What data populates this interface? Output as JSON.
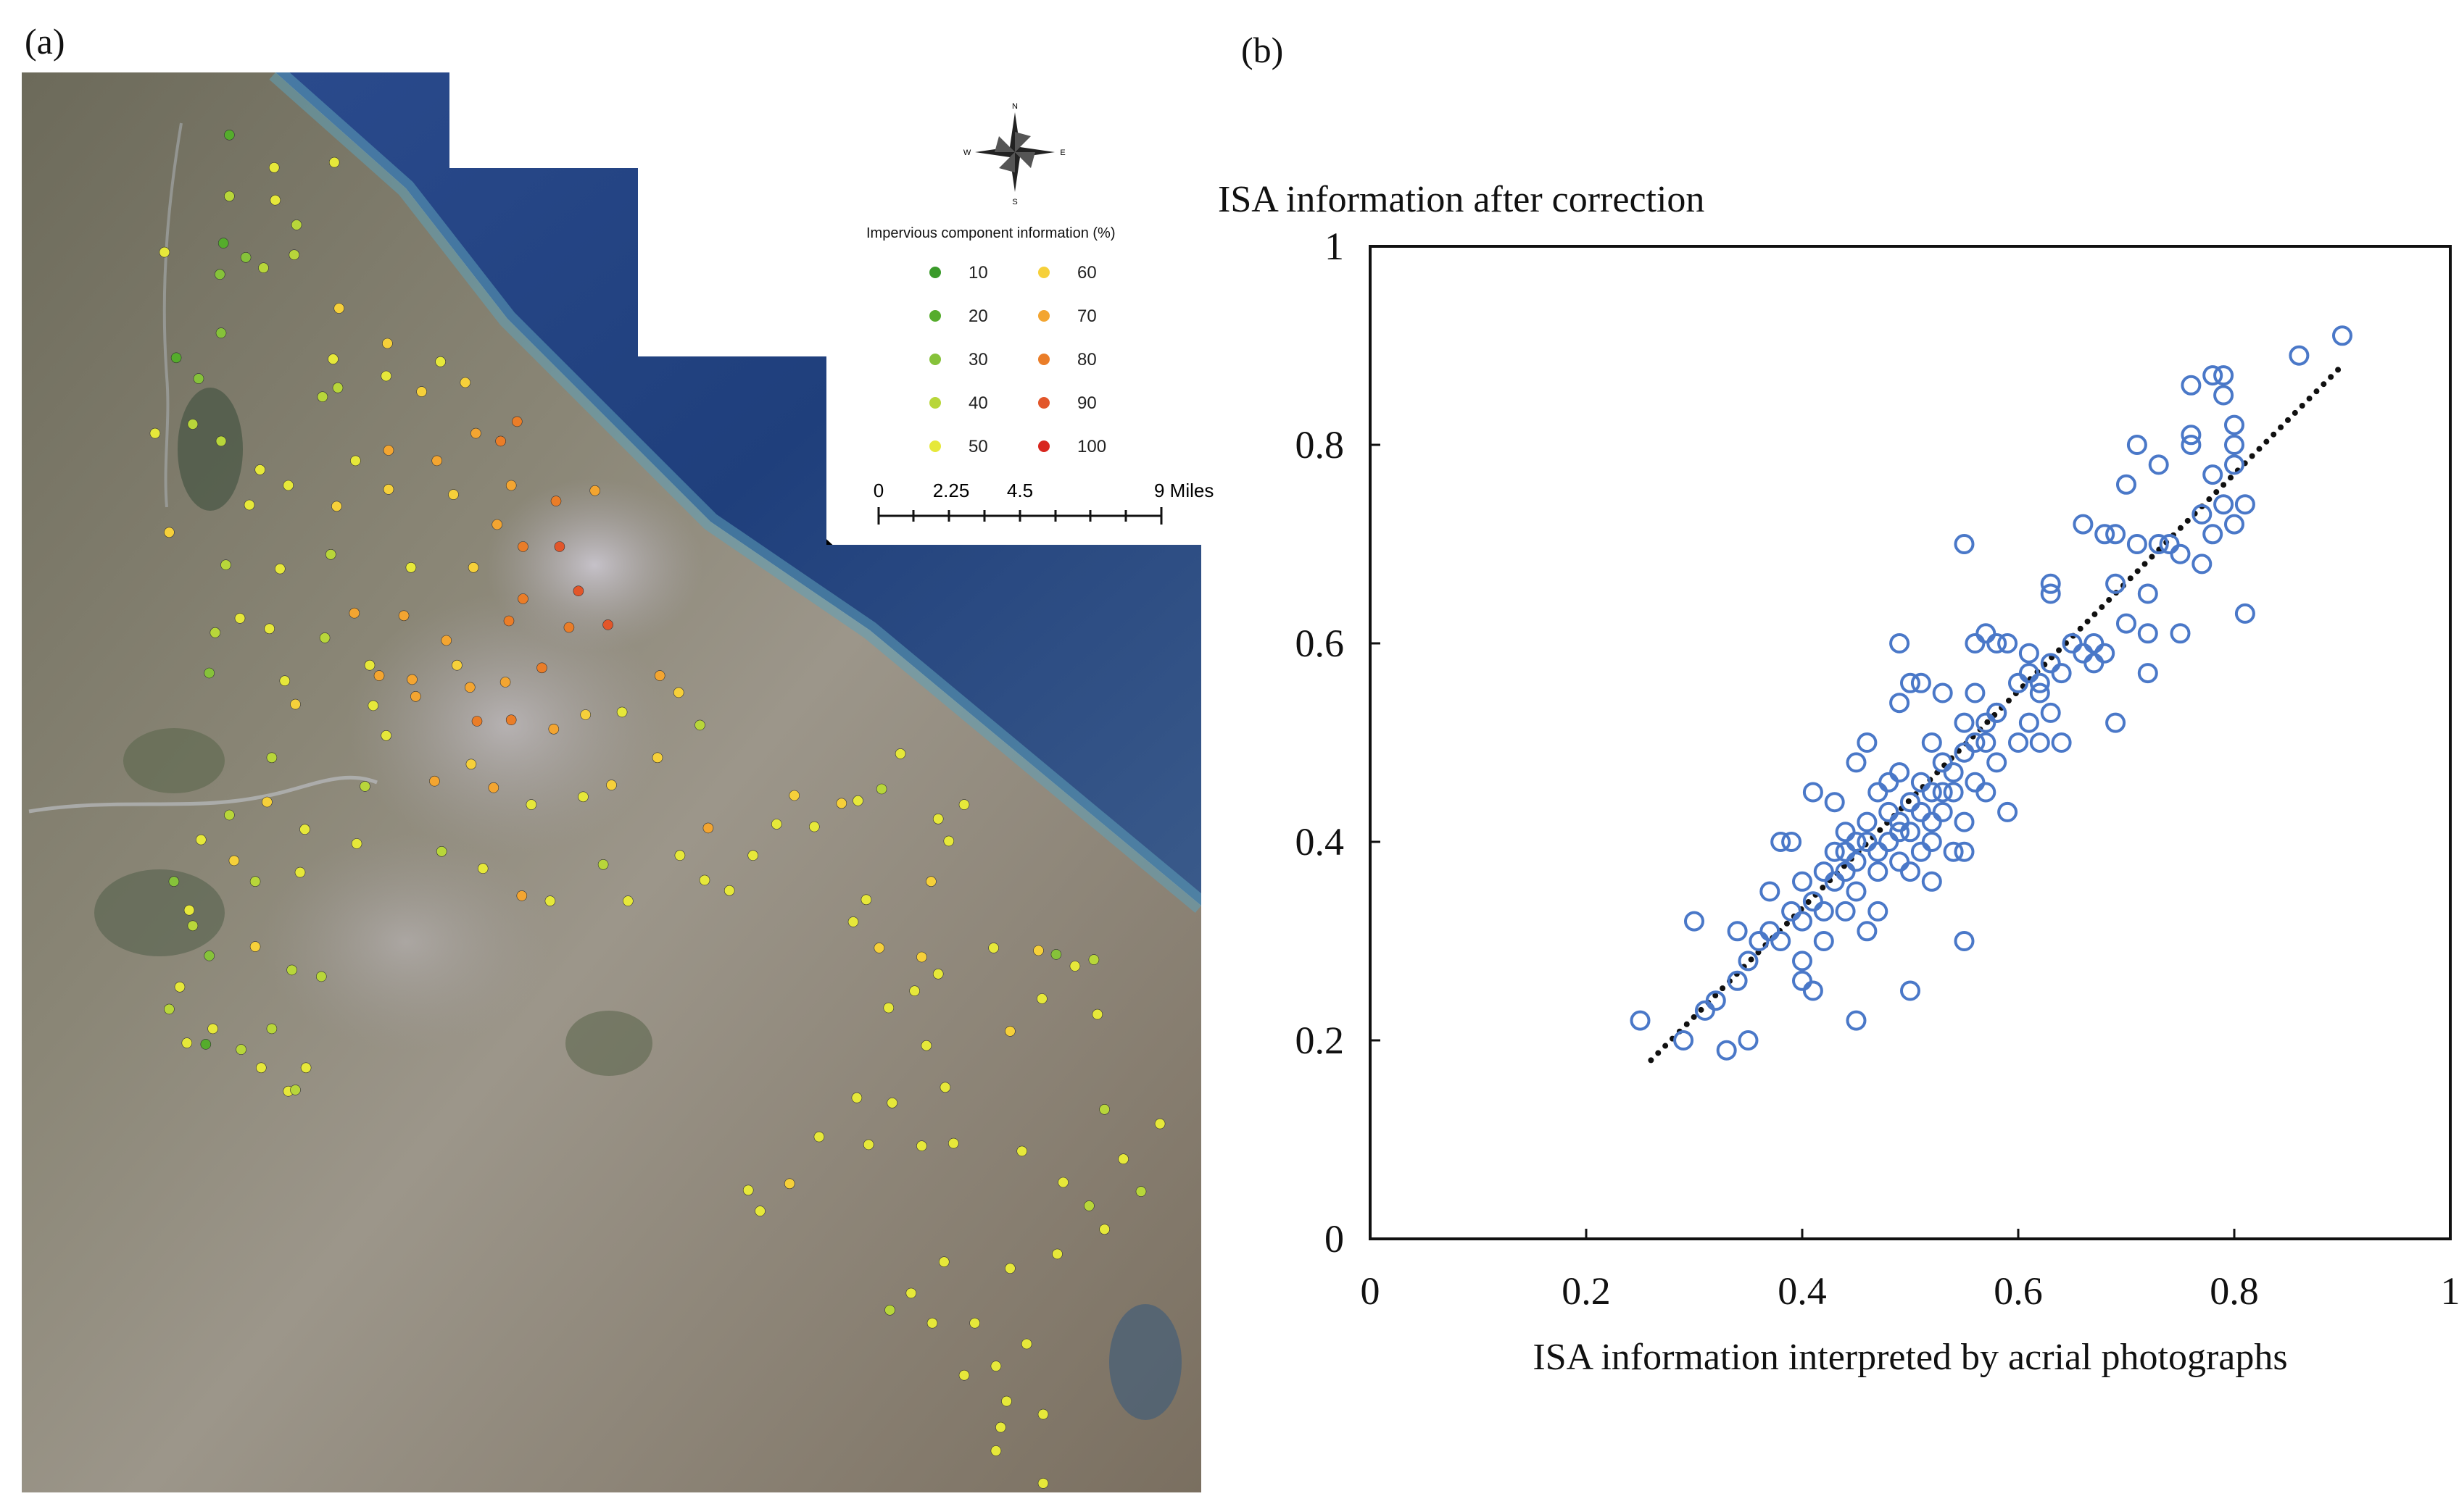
{
  "panel_a": {
    "label": "(a)",
    "compass": {
      "n": "N",
      "s": "S",
      "e": "E",
      "w": "W"
    },
    "legend": {
      "title": "Impervious component information (%)",
      "items": [
        {
          "value": "10",
          "color": "#3a9a2a"
        },
        {
          "value": "20",
          "color": "#55ac2c"
        },
        {
          "value": "30",
          "color": "#86c23a"
        },
        {
          "value": "40",
          "color": "#b8d63a"
        },
        {
          "value": "50",
          "color": "#e6e83a"
        },
        {
          "value": "60",
          "color": "#f6d03a"
        },
        {
          "value": "70",
          "color": "#f3a531"
        },
        {
          "value": "80",
          "color": "#ea7d28"
        },
        {
          "value": "90",
          "color": "#e2562a"
        },
        {
          "value": "100",
          "color": "#d8261e"
        }
      ]
    },
    "scalebar": {
      "ticks": [
        "0",
        "2.25",
        "4.5",
        "9 Miles"
      ]
    }
  },
  "panel_b": {
    "label": "(b)"
  },
  "chart_data": {
    "type": "scatter",
    "title": "",
    "ylabel": "ISA information after correction",
    "xlabel": "ISA information interpreted by acrial  photographs",
    "xlim": [
      0,
      1
    ],
    "ylim": [
      0,
      1
    ],
    "xticks": [
      "0",
      "0.2",
      "0.4",
      "0.6",
      "0.8",
      "1"
    ],
    "yticks": [
      "0",
      "0.2",
      "0.4",
      "0.6",
      "0.8",
      "1"
    ],
    "marker_color": "#4a78c8",
    "trendline": {
      "style": "dotted",
      "x": [
        0.26,
        0.9
      ],
      "y": [
        0.18,
        0.88
      ]
    },
    "series": [
      {
        "name": "samples",
        "points": [
          [
            0.25,
            0.22
          ],
          [
            0.29,
            0.2
          ],
          [
            0.3,
            0.32
          ],
          [
            0.31,
            0.23
          ],
          [
            0.32,
            0.24
          ],
          [
            0.33,
            0.19
          ],
          [
            0.34,
            0.31
          ],
          [
            0.35,
            0.2
          ],
          [
            0.34,
            0.26
          ],
          [
            0.35,
            0.28
          ],
          [
            0.36,
            0.3
          ],
          [
            0.37,
            0.31
          ],
          [
            0.37,
            0.35
          ],
          [
            0.38,
            0.3
          ],
          [
            0.38,
            0.4
          ],
          [
            0.39,
            0.4
          ],
          [
            0.39,
            0.33
          ],
          [
            0.4,
            0.28
          ],
          [
            0.4,
            0.32
          ],
          [
            0.4,
            0.36
          ],
          [
            0.4,
            0.26
          ],
          [
            0.41,
            0.45
          ],
          [
            0.41,
            0.34
          ],
          [
            0.41,
            0.25
          ],
          [
            0.42,
            0.37
          ],
          [
            0.42,
            0.33
          ],
          [
            0.42,
            0.3
          ],
          [
            0.43,
            0.39
          ],
          [
            0.43,
            0.36
          ],
          [
            0.43,
            0.44
          ],
          [
            0.44,
            0.37
          ],
          [
            0.44,
            0.41
          ],
          [
            0.44,
            0.33
          ],
          [
            0.45,
            0.4
          ],
          [
            0.45,
            0.38
          ],
          [
            0.45,
            0.35
          ],
          [
            0.45,
            0.22
          ],
          [
            0.45,
            0.48
          ],
          [
            0.46,
            0.5
          ],
          [
            0.46,
            0.42
          ],
          [
            0.46,
            0.31
          ],
          [
            0.47,
            0.39
          ],
          [
            0.47,
            0.45
          ],
          [
            0.47,
            0.37
          ],
          [
            0.47,
            0.33
          ],
          [
            0.48,
            0.43
          ],
          [
            0.48,
            0.46
          ],
          [
            0.48,
            0.4
          ],
          [
            0.49,
            0.38
          ],
          [
            0.49,
            0.41
          ],
          [
            0.49,
            0.47
          ],
          [
            0.49,
            0.54
          ],
          [
            0.49,
            0.6
          ],
          [
            0.5,
            0.37
          ],
          [
            0.5,
            0.44
          ],
          [
            0.5,
            0.41
          ],
          [
            0.5,
            0.25
          ],
          [
            0.5,
            0.56
          ],
          [
            0.51,
            0.39
          ],
          [
            0.51,
            0.43
          ],
          [
            0.51,
            0.46
          ],
          [
            0.51,
            0.56
          ],
          [
            0.52,
            0.4
          ],
          [
            0.52,
            0.45
          ],
          [
            0.52,
            0.36
          ],
          [
            0.52,
            0.5
          ],
          [
            0.53,
            0.48
          ],
          [
            0.53,
            0.43
          ],
          [
            0.53,
            0.55
          ],
          [
            0.54,
            0.45
          ],
          [
            0.54,
            0.39
          ],
          [
            0.54,
            0.47
          ],
          [
            0.55,
            0.49
          ],
          [
            0.55,
            0.52
          ],
          [
            0.55,
            0.42
          ],
          [
            0.55,
            0.7
          ],
          [
            0.55,
            0.39
          ],
          [
            0.55,
            0.3
          ],
          [
            0.56,
            0.5
          ],
          [
            0.56,
            0.46
          ],
          [
            0.56,
            0.55
          ],
          [
            0.56,
            0.6
          ],
          [
            0.57,
            0.5
          ],
          [
            0.57,
            0.52
          ],
          [
            0.57,
            0.61
          ],
          [
            0.57,
            0.45
          ],
          [
            0.58,
            0.48
          ],
          [
            0.58,
            0.53
          ],
          [
            0.58,
            0.6
          ],
          [
            0.59,
            0.43
          ],
          [
            0.59,
            0.6
          ],
          [
            0.6,
            0.5
          ],
          [
            0.61,
            0.52
          ],
          [
            0.61,
            0.57
          ],
          [
            0.61,
            0.59
          ],
          [
            0.62,
            0.55
          ],
          [
            0.62,
            0.5
          ],
          [
            0.62,
            0.56
          ],
          [
            0.63,
            0.53
          ],
          [
            0.63,
            0.58
          ],
          [
            0.63,
            0.65
          ],
          [
            0.63,
            0.66
          ],
          [
            0.64,
            0.57
          ],
          [
            0.64,
            0.5
          ],
          [
            0.65,
            0.6
          ],
          [
            0.66,
            0.59
          ],
          [
            0.66,
            0.72
          ],
          [
            0.67,
            0.6
          ],
          [
            0.67,
            0.58
          ],
          [
            0.68,
            0.71
          ],
          [
            0.68,
            0.59
          ],
          [
            0.69,
            0.71
          ],
          [
            0.69,
            0.52
          ],
          [
            0.69,
            0.66
          ],
          [
            0.7,
            0.62
          ],
          [
            0.7,
            0.76
          ],
          [
            0.71,
            0.7
          ],
          [
            0.71,
            0.8
          ],
          [
            0.72,
            0.61
          ],
          [
            0.72,
            0.65
          ],
          [
            0.72,
            0.57
          ],
          [
            0.73,
            0.7
          ],
          [
            0.73,
            0.78
          ],
          [
            0.74,
            0.7
          ],
          [
            0.75,
            0.61
          ],
          [
            0.75,
            0.69
          ],
          [
            0.76,
            0.81
          ],
          [
            0.76,
            0.86
          ],
          [
            0.76,
            0.8
          ],
          [
            0.77,
            0.73
          ],
          [
            0.77,
            0.68
          ],
          [
            0.78,
            0.71
          ],
          [
            0.78,
            0.87
          ],
          [
            0.78,
            0.77
          ],
          [
            0.79,
            0.74
          ],
          [
            0.79,
            0.85
          ],
          [
            0.79,
            0.87
          ],
          [
            0.8,
            0.72
          ],
          [
            0.8,
            0.78
          ],
          [
            0.8,
            0.8
          ],
          [
            0.8,
            0.82
          ],
          [
            0.81,
            0.74
          ],
          [
            0.81,
            0.63
          ],
          [
            0.86,
            0.89
          ],
          [
            0.9,
            0.91
          ],
          [
            0.44,
            0.39
          ],
          [
            0.46,
            0.4
          ],
          [
            0.49,
            0.42
          ],
          [
            0.52,
            0.42
          ],
          [
            0.53,
            0.45
          ],
          [
            0.58,
            0.53
          ],
          [
            0.6,
            0.56
          ]
        ]
      }
    ]
  },
  "map_points": [
    [
      0.176,
      0.048,
      2
    ],
    [
      0.214,
      0.073,
      5
    ],
    [
      0.265,
      0.069,
      5
    ],
    [
      0.176,
      0.095,
      4
    ],
    [
      0.215,
      0.098,
      5
    ],
    [
      0.233,
      0.117,
      4
    ],
    [
      0.121,
      0.138,
      5
    ],
    [
      0.171,
      0.131,
      2
    ],
    [
      0.19,
      0.142,
      3
    ],
    [
      0.168,
      0.155,
      3
    ],
    [
      0.231,
      0.14,
      4
    ],
    [
      0.205,
      0.15,
      4
    ],
    [
      0.169,
      0.2,
      3
    ],
    [
      0.269,
      0.181,
      6
    ],
    [
      0.31,
      0.208,
      6
    ],
    [
      0.264,
      0.22,
      5
    ],
    [
      0.131,
      0.219,
      2
    ],
    [
      0.15,
      0.235,
      3
    ],
    [
      0.255,
      0.249,
      4
    ],
    [
      0.268,
      0.242,
      4
    ],
    [
      0.309,
      0.233,
      5
    ],
    [
      0.355,
      0.222,
      5
    ],
    [
      0.339,
      0.245,
      6
    ],
    [
      0.376,
      0.238,
      6
    ],
    [
      0.385,
      0.277,
      7
    ],
    [
      0.42,
      0.268,
      8
    ],
    [
      0.406,
      0.283,
      8
    ],
    [
      0.352,
      0.298,
      7
    ],
    [
      0.311,
      0.29,
      7
    ],
    [
      0.169,
      0.283,
      4
    ],
    [
      0.145,
      0.27,
      4
    ],
    [
      0.113,
      0.277,
      5
    ],
    [
      0.202,
      0.305,
      5
    ],
    [
      0.193,
      0.332,
      5
    ],
    [
      0.226,
      0.317,
      5
    ],
    [
      0.283,
      0.298,
      5
    ],
    [
      0.267,
      0.333,
      6
    ],
    [
      0.311,
      0.32,
      6
    ],
    [
      0.366,
      0.324,
      6
    ],
    [
      0.403,
      0.347,
      7
    ],
    [
      0.415,
      0.317,
      7
    ],
    [
      0.453,
      0.329,
      8
    ],
    [
      0.486,
      0.321,
      7
    ],
    [
      0.456,
      0.364,
      9
    ],
    [
      0.425,
      0.364,
      8
    ],
    [
      0.383,
      0.38,
      6
    ],
    [
      0.33,
      0.38,
      5
    ],
    [
      0.262,
      0.37,
      4
    ],
    [
      0.219,
      0.381,
      5
    ],
    [
      0.173,
      0.378,
      4
    ],
    [
      0.125,
      0.353,
      6
    ],
    [
      0.164,
      0.43,
      4
    ],
    [
      0.185,
      0.419,
      5
    ],
    [
      0.21,
      0.427,
      5
    ],
    [
      0.257,
      0.434,
      4
    ],
    [
      0.159,
      0.461,
      3
    ],
    [
      0.223,
      0.467,
      5
    ],
    [
      0.295,
      0.455,
      5
    ],
    [
      0.303,
      0.463,
      7
    ],
    [
      0.331,
      0.466,
      7
    ],
    [
      0.369,
      0.455,
      6
    ],
    [
      0.38,
      0.472,
      7
    ],
    [
      0.41,
      0.468,
      7
    ],
    [
      0.441,
      0.457,
      8
    ],
    [
      0.464,
      0.426,
      8
    ],
    [
      0.497,
      0.424,
      9
    ],
    [
      0.472,
      0.398,
      9
    ],
    [
      0.425,
      0.404,
      8
    ],
    [
      0.413,
      0.421,
      8
    ],
    [
      0.36,
      0.436,
      7
    ],
    [
      0.324,
      0.417,
      7
    ],
    [
      0.282,
      0.415,
      7
    ],
    [
      0.232,
      0.485,
      6
    ],
    [
      0.298,
      0.486,
      5
    ],
    [
      0.309,
      0.509,
      5
    ],
    [
      0.334,
      0.479,
      7
    ],
    [
      0.386,
      0.498,
      8
    ],
    [
      0.415,
      0.497,
      8
    ],
    [
      0.451,
      0.504,
      7
    ],
    [
      0.478,
      0.493,
      6
    ],
    [
      0.509,
      0.491,
      5
    ],
    [
      0.541,
      0.463,
      7
    ],
    [
      0.557,
      0.476,
      6
    ],
    [
      0.575,
      0.501,
      4
    ],
    [
      0.539,
      0.526,
      6
    ],
    [
      0.5,
      0.547,
      6
    ],
    [
      0.476,
      0.556,
      5
    ],
    [
      0.432,
      0.562,
      5
    ],
    [
      0.4,
      0.549,
      7
    ],
    [
      0.381,
      0.531,
      6
    ],
    [
      0.35,
      0.544,
      7
    ],
    [
      0.291,
      0.548,
      4
    ],
    [
      0.212,
      0.526,
      4
    ],
    [
      0.208,
      0.56,
      6
    ],
    [
      0.24,
      0.581,
      5
    ],
    [
      0.176,
      0.57,
      4
    ],
    [
      0.152,
      0.589,
      5
    ],
    [
      0.18,
      0.605,
      6
    ],
    [
      0.129,
      0.621,
      3
    ],
    [
      0.142,
      0.643,
      5
    ],
    [
      0.198,
      0.621,
      4
    ],
    [
      0.236,
      0.614,
      5
    ],
    [
      0.284,
      0.592,
      5
    ],
    [
      0.356,
      0.598,
      4
    ],
    [
      0.391,
      0.611,
      5
    ],
    [
      0.424,
      0.632,
      7
    ],
    [
      0.448,
      0.636,
      5
    ],
    [
      0.493,
      0.608,
      4
    ],
    [
      0.514,
      0.636,
      5
    ],
    [
      0.558,
      0.601,
      5
    ],
    [
      0.582,
      0.58,
      7
    ],
    [
      0.579,
      0.62,
      5
    ],
    [
      0.6,
      0.628,
      5
    ],
    [
      0.62,
      0.601,
      5
    ],
    [
      0.64,
      0.577,
      5
    ],
    [
      0.672,
      0.579,
      5
    ],
    [
      0.655,
      0.555,
      6
    ],
    [
      0.695,
      0.561,
      6
    ],
    [
      0.709,
      0.559,
      5
    ],
    [
      0.729,
      0.55,
      4
    ],
    [
      0.745,
      0.523,
      5
    ],
    [
      0.777,
      0.573,
      5
    ],
    [
      0.799,
      0.562,
      5
    ],
    [
      0.786,
      0.59,
      5
    ],
    [
      0.771,
      0.621,
      6
    ],
    [
      0.716,
      0.635,
      5
    ],
    [
      0.705,
      0.652,
      5
    ],
    [
      0.727,
      0.672,
      6
    ],
    [
      0.763,
      0.679,
      6
    ],
    [
      0.777,
      0.692,
      5
    ],
    [
      0.757,
      0.705,
      5
    ],
    [
      0.735,
      0.718,
      5
    ],
    [
      0.767,
      0.747,
      5
    ],
    [
      0.824,
      0.672,
      5
    ],
    [
      0.862,
      0.674,
      6
    ],
    [
      0.877,
      0.677,
      3
    ],
    [
      0.893,
      0.686,
      5
    ],
    [
      0.909,
      0.681,
      4
    ],
    [
      0.912,
      0.723,
      5
    ],
    [
      0.865,
      0.711,
      5
    ],
    [
      0.838,
      0.736,
      6
    ],
    [
      0.783,
      0.779,
      5
    ],
    [
      0.738,
      0.791,
      5
    ],
    [
      0.708,
      0.787,
      5
    ],
    [
      0.676,
      0.817,
      5
    ],
    [
      0.651,
      0.853,
      6
    ],
    [
      0.616,
      0.858,
      5
    ],
    [
      0.626,
      0.874,
      5
    ],
    [
      0.718,
      0.823,
      5
    ],
    [
      0.763,
      0.824,
      5
    ],
    [
      0.79,
      0.822,
      5
    ],
    [
      0.848,
      0.828,
      5
    ],
    [
      0.883,
      0.852,
      5
    ],
    [
      0.905,
      0.87,
      4
    ],
    [
      0.918,
      0.888,
      5
    ],
    [
      0.878,
      0.907,
      5
    ],
    [
      0.838,
      0.918,
      5
    ],
    [
      0.782,
      0.913,
      5
    ],
    [
      0.754,
      0.937,
      5
    ],
    [
      0.736,
      0.95,
      4
    ],
    [
      0.772,
      0.96,
      5
    ],
    [
      0.808,
      0.96,
      5
    ],
    [
      0.852,
      0.976,
      5
    ],
    [
      0.826,
      0.993,
      5
    ],
    [
      0.799,
      1.0,
      5
    ],
    [
      0.835,
      1.02,
      5
    ],
    [
      0.83,
      1.04,
      5
    ],
    [
      0.866,
      1.03,
      5
    ],
    [
      0.826,
      1.058,
      5
    ],
    [
      0.866,
      1.083,
      5
    ],
    [
      0.934,
      0.834,
      5
    ],
    [
      0.949,
      0.859,
      4
    ],
    [
      0.965,
      0.807,
      5
    ],
    [
      0.918,
      0.796,
      4
    ],
    [
      0.145,
      0.655,
      4
    ],
    [
      0.134,
      0.702,
      5
    ],
    [
      0.162,
      0.734,
      5
    ],
    [
      0.156,
      0.746,
      2
    ],
    [
      0.212,
      0.734,
      4
    ],
    [
      0.186,
      0.75,
      4
    ],
    [
      0.226,
      0.782,
      5
    ],
    [
      0.241,
      0.764,
      5
    ],
    [
      0.232,
      0.781,
      4
    ],
    [
      0.229,
      0.689,
      4
    ],
    [
      0.254,
      0.694,
      4
    ],
    [
      0.198,
      0.671,
      6
    ],
    [
      0.14,
      0.745,
      5
    ],
    [
      0.159,
      0.678,
      3
    ],
    [
      0.125,
      0.719,
      4
    ],
    [
      0.203,
      0.764,
      5
    ]
  ]
}
